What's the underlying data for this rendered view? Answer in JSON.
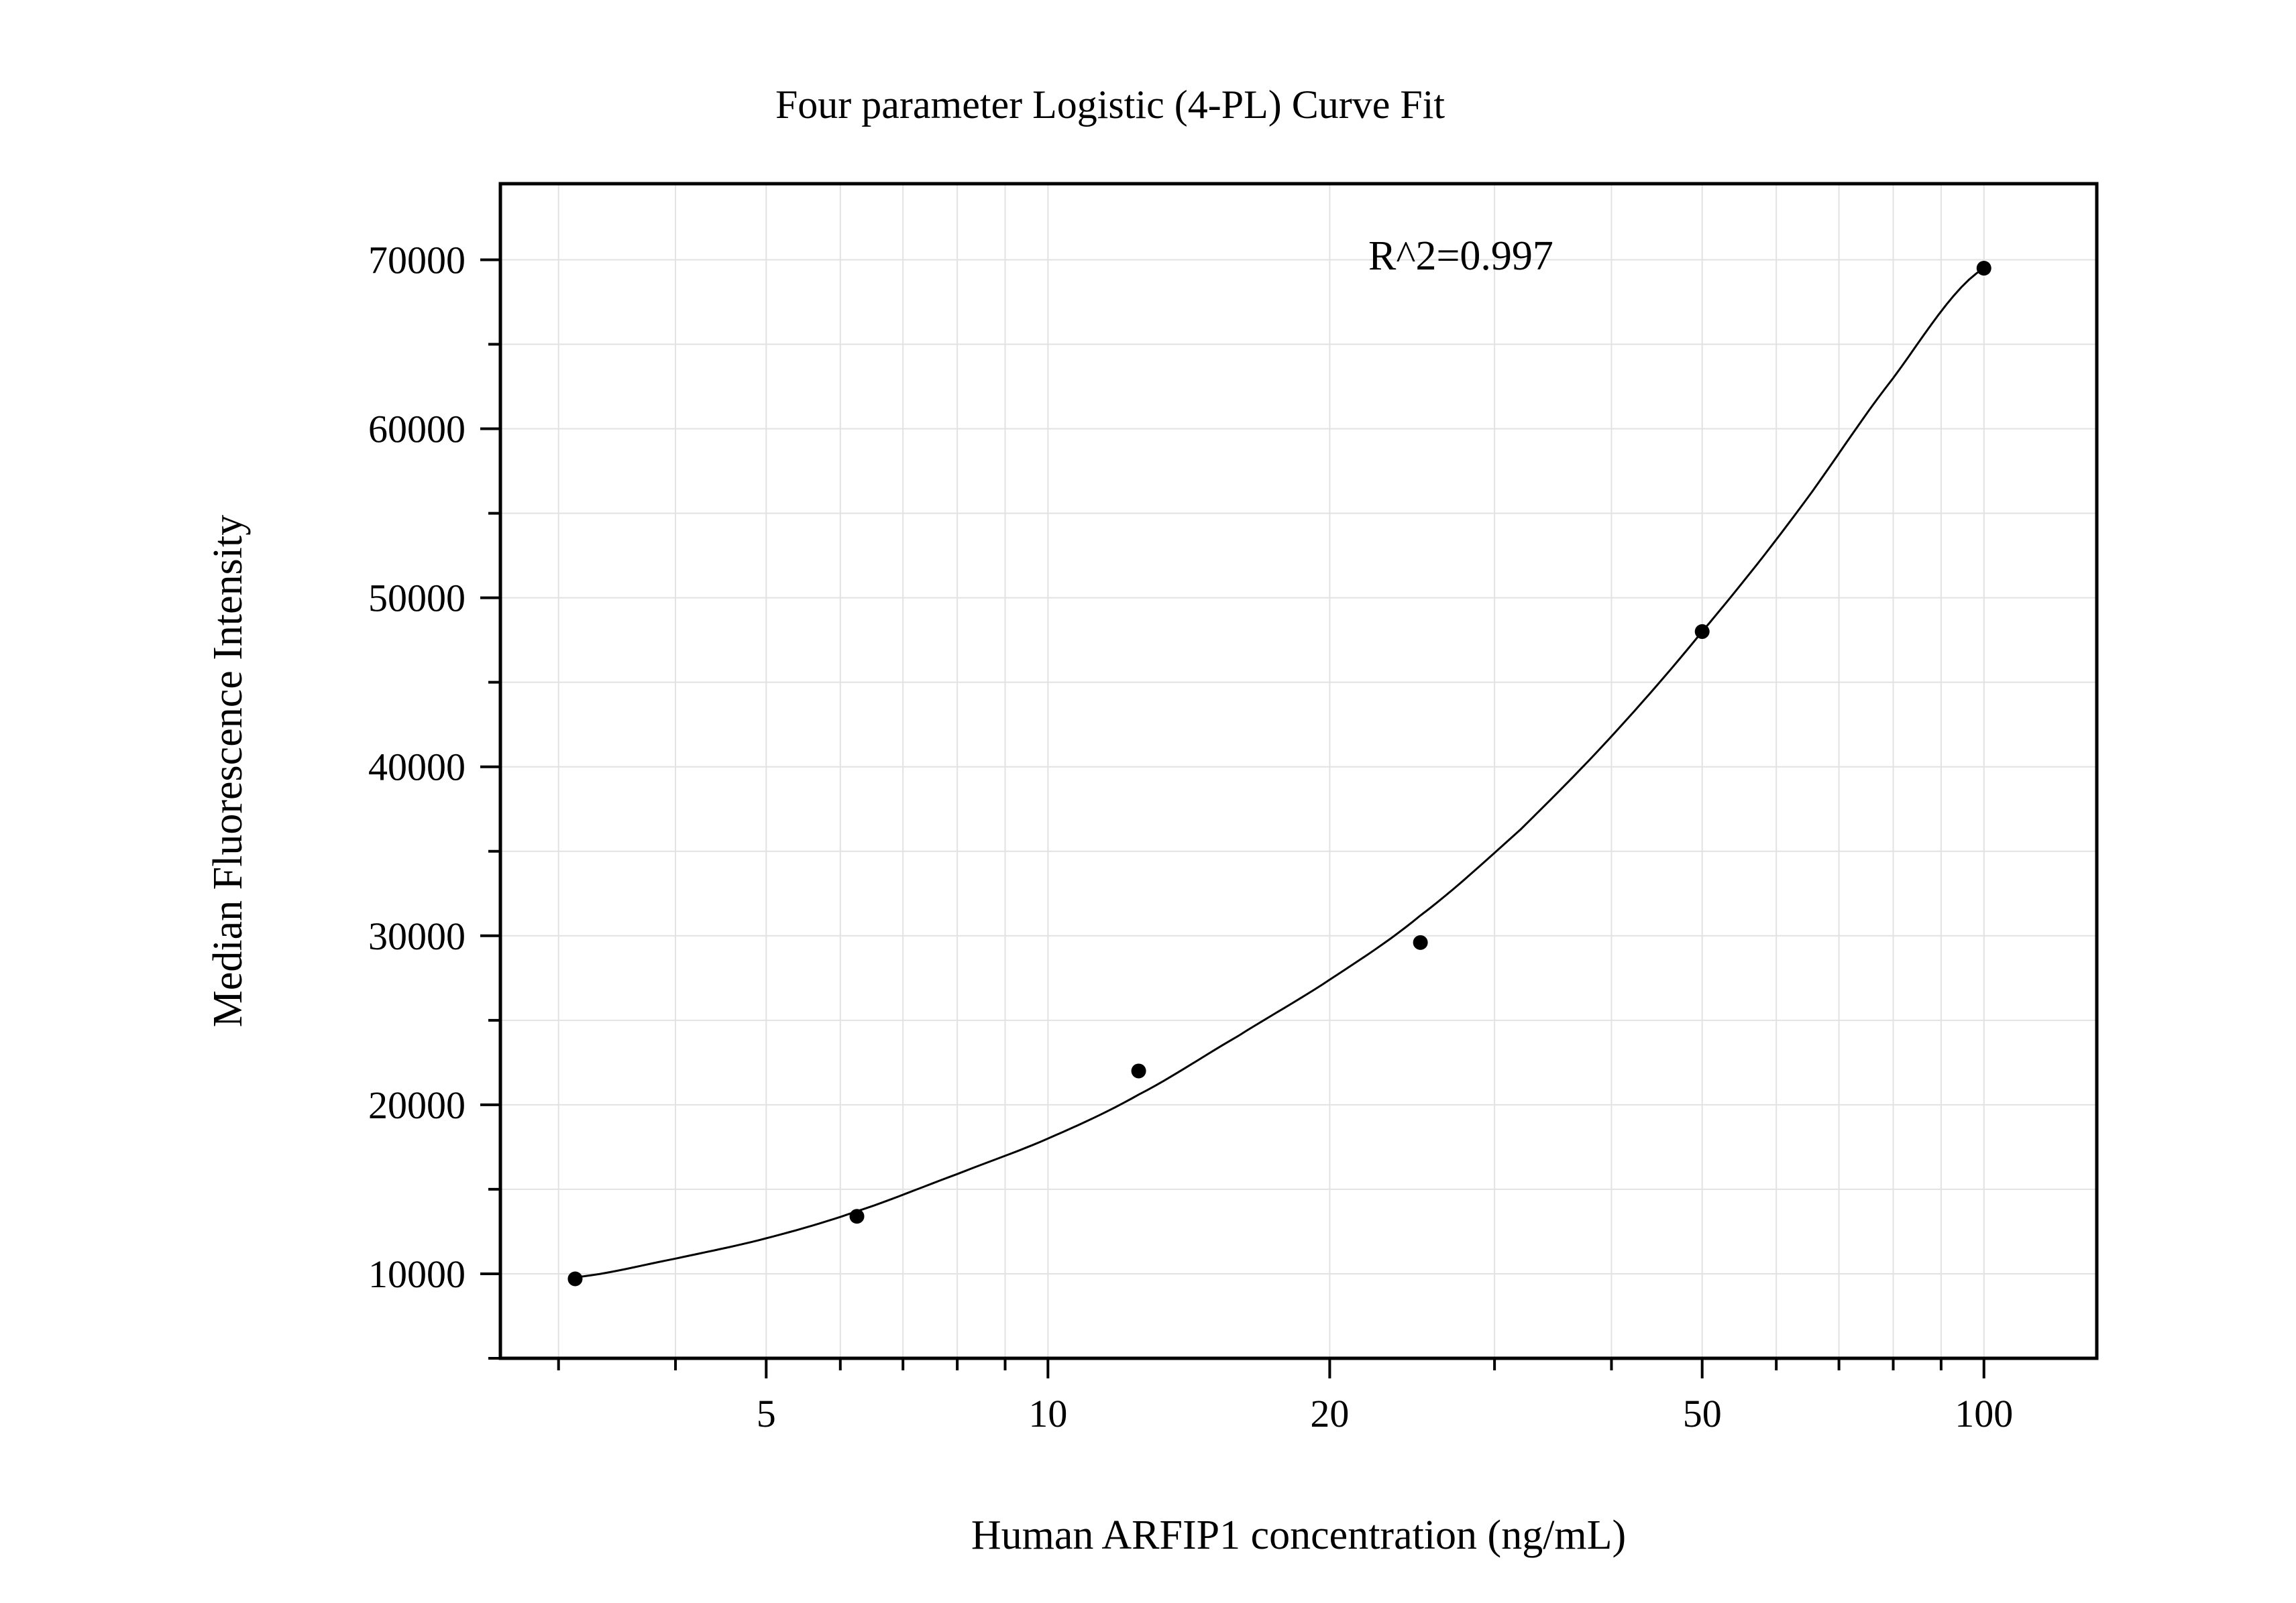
{
  "chart_data": {
    "type": "scatter",
    "title": "Four parameter Logistic (4-PL) Curve Fit",
    "xlabel": "Human ARFIP1 concentration (ng/mL)",
    "ylabel": "Median Fluorescence Intensity",
    "annotation": "R^2=0.997",
    "x_scale": "log",
    "xlim": [
      2.6,
      132
    ],
    "ylim": [
      5000,
      74500
    ],
    "x_ticks": [
      5,
      10,
      20,
      50,
      100
    ],
    "x_tick_labels": [
      "5",
      "10",
      "20",
      "50",
      "100"
    ],
    "y_ticks": [
      10000,
      20000,
      30000,
      40000,
      50000,
      60000,
      70000
    ],
    "y_tick_labels": [
      "10000",
      "20000",
      "30000",
      "40000",
      "50000",
      "60000",
      "70000"
    ],
    "grid": true,
    "series": [
      {
        "points": [
          {
            "x": 3.125,
            "y": 9700
          },
          {
            "x": 6.25,
            "y": 13400
          },
          {
            "x": 12.5,
            "y": 22000
          },
          {
            "x": 25,
            "y": 29600
          },
          {
            "x": 50,
            "y": 48000
          },
          {
            "x": 100,
            "y": 69500
          }
        ]
      }
    ],
    "fit_curve": {
      "type": "4-PL",
      "points": [
        {
          "x": 3.125,
          "y": 9800
        },
        {
          "x": 4,
          "y": 10900
        },
        {
          "x": 5,
          "y": 12100
        },
        {
          "x": 6.25,
          "y": 13700
        },
        {
          "x": 8,
          "y": 15900
        },
        {
          "x": 10,
          "y": 18000
        },
        {
          "x": 12.5,
          "y": 20600
        },
        {
          "x": 16,
          "y": 24100
        },
        {
          "x": 20,
          "y": 27400
        },
        {
          "x": 25,
          "y": 31200
        },
        {
          "x": 32,
          "y": 36300
        },
        {
          "x": 40,
          "y": 41800
        },
        {
          "x": 50,
          "y": 48000
        },
        {
          "x": 63,
          "y": 55000
        },
        {
          "x": 80,
          "y": 63000
        },
        {
          "x": 100,
          "y": 69500
        }
      ]
    },
    "colors": {
      "points": "#000000",
      "curve": "#000000",
      "grid": "#e2e2e2",
      "frame": "#000000"
    }
  }
}
